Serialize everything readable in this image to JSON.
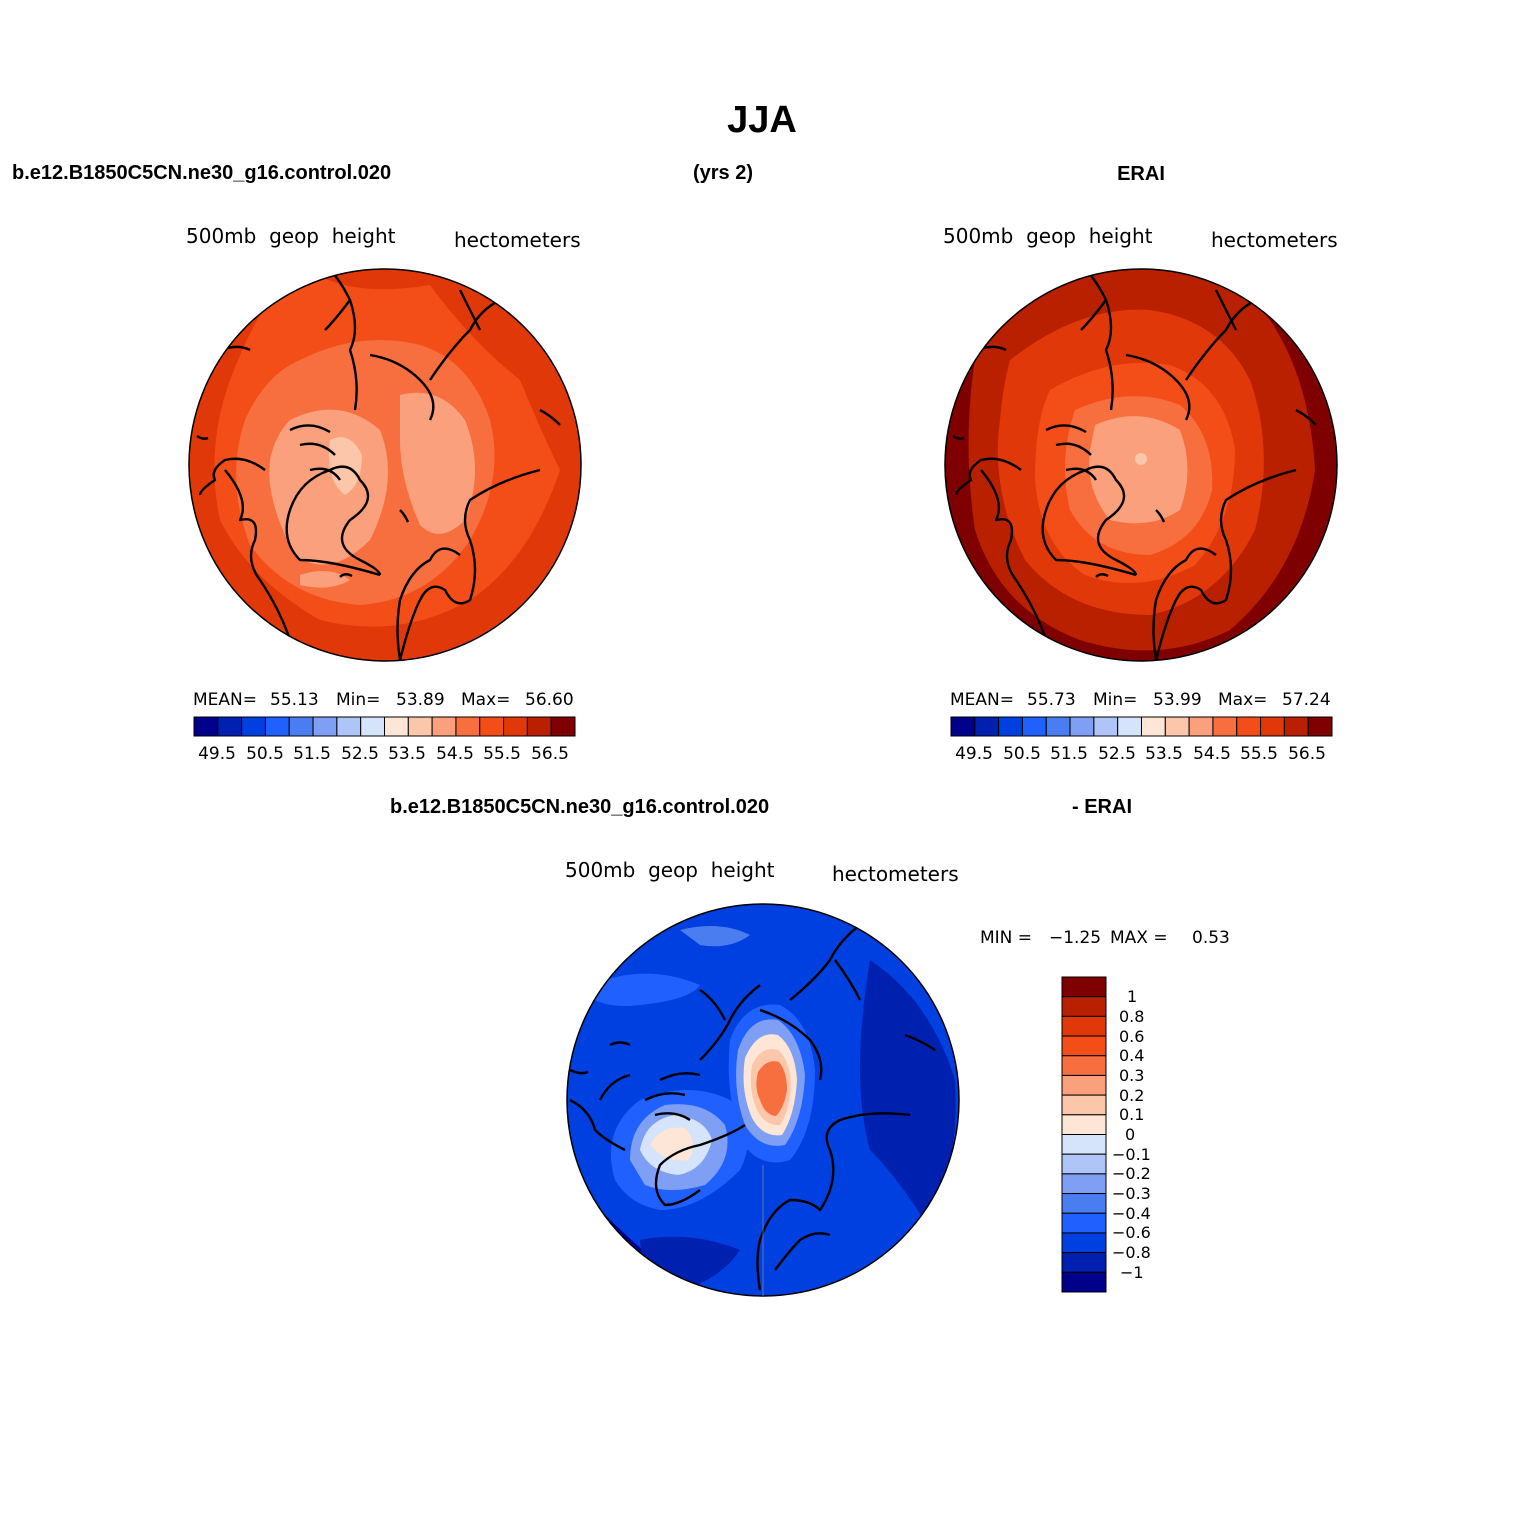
{
  "main_title": "JJA",
  "header": {
    "case_name": "b.e12.B1850C5CN.ne30_g16.control.020",
    "years": "(yrs 2)",
    "obs_name": "ERAI"
  },
  "diff_header": {
    "case_name": "b.e12.B1850C5CN.ne30_g16.control.020",
    "obs_name": "- ERAI"
  },
  "palette": {
    "full_field": [
      "#00008b",
      "#0020b0",
      "#0040e0",
      "#2060ff",
      "#4a7ef0",
      "#7f9ff5",
      "#afc4f7",
      "#d6e4fb",
      "#fde6d6",
      "#fcc6aa",
      "#faa07c",
      "#f76e3f",
      "#f34e18",
      "#e03808",
      "#b82000",
      "#7f0000"
    ],
    "difference": [
      "#00008b",
      "#0020b0",
      "#0040e0",
      "#2060ff",
      "#4a7ef0",
      "#7f9ff5",
      "#afc4f7",
      "#d6e4fb",
      "#fde6d6",
      "#fcc6aa",
      "#faa07c",
      "#f76e3f",
      "#f34e18",
      "#e03808",
      "#b82000",
      "#7f0000"
    ]
  },
  "panels": [
    {
      "id": "model",
      "variable": "500mb  geop  height",
      "units": "hectometers",
      "stats": {
        "mean_label": "MEAN=",
        "mean": "55.13",
        "min_label": "Min=",
        "min": "53.89",
        "max_label": "Max=",
        "max": "56.60"
      },
      "colorbar_ticks": [
        "49.5",
        "50.5",
        "51.5",
        "52.5",
        "53.5",
        "54.5",
        "55.5",
        "56.5"
      ],
      "projection": "north-polar-stereographic"
    },
    {
      "id": "obs",
      "variable": "500mb  geop  height",
      "units": "hectometers",
      "stats": {
        "mean_label": "MEAN=",
        "mean": "55.73",
        "min_label": "Min=",
        "min": "53.99",
        "max_label": "Max=",
        "max": "57.24"
      },
      "colorbar_ticks": [
        "49.5",
        "50.5",
        "51.5",
        "52.5",
        "53.5",
        "54.5",
        "55.5",
        "56.5"
      ],
      "projection": "north-polar-stereographic"
    },
    {
      "id": "difference",
      "variable": "500mb  geop  height",
      "units": "hectometers",
      "stats": {
        "min_label": "MIN =",
        "min": "−1.25",
        "max_label": "MAX =",
        "max": "0.53"
      },
      "colorbar_ticks": [
        "1",
        "0.8",
        "0.6",
        "0.4",
        "0.3",
        "0.2",
        "0.1",
        "0",
        "−0.1",
        "−0.2",
        "−0.3",
        "−0.4",
        "−0.6",
        "−0.8",
        "−1"
      ],
      "projection": "north-polar-stereographic"
    }
  ]
}
